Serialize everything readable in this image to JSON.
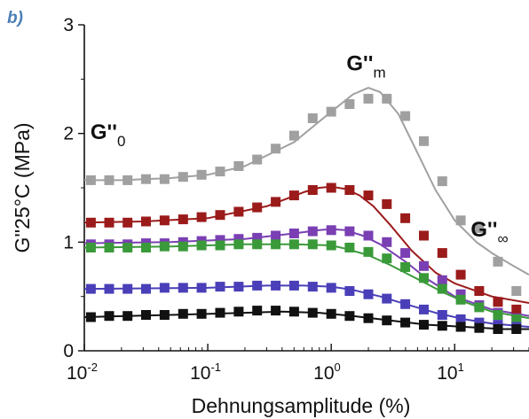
{
  "panel_label": "b)",
  "chart_data": {
    "type": "scatter",
    "title": "",
    "xlabel": "Dehnungsamplitude (%)",
    "ylabel": "G''25°C (MPa)",
    "x_scale": "log",
    "xlim": [
      0.01,
      40
    ],
    "ylim": [
      0,
      3
    ],
    "x_ticks": [
      {
        "value": 0.01,
        "base": "10",
        "exp": "-2"
      },
      {
        "value": 0.1,
        "base": "10",
        "exp": "-1"
      },
      {
        "value": 1,
        "base": "10",
        "exp": "0"
      },
      {
        "value": 10,
        "base": "10",
        "exp": "1"
      }
    ],
    "y_ticks": [
      {
        "value": 0,
        "label": "0"
      },
      {
        "value": 1,
        "label": "1"
      },
      {
        "value": 2,
        "label": "2"
      },
      {
        "value": 3,
        "label": "3"
      }
    ],
    "annotations": [
      {
        "text": "G''",
        "sub": "0",
        "x": 0.0112,
        "y": 1.95
      },
      {
        "text": "G''",
        "sub": "m",
        "x": 1.33,
        "y": 2.58
      },
      {
        "text": "G''",
        "sub": "∞",
        "x": 13.5,
        "y": 1.05
      }
    ],
    "series": [
      {
        "color": "#a0a0a0",
        "x": [
          0.0113,
          0.0159,
          0.0224,
          0.0316,
          0.0447,
          0.0631,
          0.0891,
          0.126,
          0.178,
          0.251,
          0.355,
          0.501,
          0.708,
          1.0,
          1.41,
          2.0,
          2.82,
          3.98,
          5.62,
          7.94,
          11.2,
          15.8,
          22.4,
          31.6
        ],
        "y": [
          1.57,
          1.57,
          1.57,
          1.58,
          1.58,
          1.6,
          1.62,
          1.65,
          1.7,
          1.76,
          1.86,
          1.98,
          2.14,
          2.2,
          2.27,
          2.32,
          2.32,
          2.16,
          1.93,
          1.56,
          1.2,
          1.13,
          0.82,
          0.55
        ],
        "fit_x": [
          0.01,
          0.02,
          0.05,
          0.1,
          0.2,
          0.5,
          1.0,
          1.5,
          2.0,
          2.5,
          3.5,
          5.0,
          7.0,
          10.0,
          15.0,
          20.0,
          30.0,
          40.0
        ],
        "fit_y": [
          1.57,
          1.57,
          1.59,
          1.62,
          1.7,
          1.92,
          2.2,
          2.36,
          2.42,
          2.38,
          2.18,
          1.82,
          1.48,
          1.2,
          1.0,
          0.9,
          0.78,
          0.7
        ]
      },
      {
        "color": "#9b1b1b",
        "x": [
          0.0113,
          0.0159,
          0.0224,
          0.0316,
          0.0447,
          0.0631,
          0.0891,
          0.126,
          0.178,
          0.251,
          0.355,
          0.501,
          0.708,
          1.0,
          1.41,
          2.0,
          2.82,
          3.98,
          5.62,
          7.94,
          11.2,
          15.8,
          22.4,
          31.6
        ],
        "y": [
          1.18,
          1.18,
          1.18,
          1.19,
          1.2,
          1.21,
          1.23,
          1.25,
          1.28,
          1.32,
          1.37,
          1.43,
          1.48,
          1.5,
          1.48,
          1.43,
          1.35,
          1.22,
          1.06,
          0.9,
          0.7,
          0.55,
          0.45,
          0.38
        ],
        "fit_x": [
          0.01,
          0.03,
          0.1,
          0.3,
          0.6,
          0.8,
          1.0,
          1.3,
          1.7,
          2.2,
          3.0,
          4.5,
          7.0,
          10.0,
          20.0,
          40.0
        ],
        "fit_y": [
          1.18,
          1.19,
          1.22,
          1.33,
          1.46,
          1.5,
          1.51,
          1.49,
          1.43,
          1.33,
          1.16,
          0.92,
          0.72,
          0.62,
          0.5,
          0.44
        ]
      },
      {
        "color": "#7a3fb3",
        "x": [
          0.0113,
          0.0159,
          0.0224,
          0.0316,
          0.0447,
          0.0631,
          0.0891,
          0.126,
          0.178,
          0.251,
          0.355,
          0.501,
          0.708,
          1.0,
          1.41,
          2.0,
          2.82,
          3.98,
          5.62,
          7.94,
          11.2,
          15.8,
          22.4,
          31.6
        ],
        "y": [
          0.98,
          0.98,
          0.98,
          0.99,
          0.99,
          1.0,
          1.01,
          1.02,
          1.03,
          1.04,
          1.06,
          1.08,
          1.1,
          1.11,
          1.1,
          1.06,
          1.0,
          0.9,
          0.78,
          0.65,
          0.52,
          0.42,
          0.35,
          0.3
        ],
        "fit_x": [
          0.01,
          0.05,
          0.2,
          0.5,
          0.8,
          1.0,
          1.3,
          1.8,
          2.5,
          4.0,
          6.0,
          10.0,
          20.0,
          40.0
        ],
        "fit_y": [
          0.99,
          1.0,
          1.03,
          1.08,
          1.11,
          1.12,
          1.11,
          1.06,
          0.98,
          0.82,
          0.66,
          0.5,
          0.38,
          0.32
        ]
      },
      {
        "color": "#3a9a3a",
        "x": [
          0.0113,
          0.0159,
          0.0224,
          0.0316,
          0.0447,
          0.0631,
          0.0891,
          0.126,
          0.178,
          0.251,
          0.355,
          0.501,
          0.708,
          1.0,
          1.41,
          2.0,
          2.82,
          3.98,
          5.62,
          7.94,
          11.2,
          15.8,
          22.4,
          31.6
        ],
        "y": [
          0.95,
          0.95,
          0.95,
          0.95,
          0.96,
          0.96,
          0.97,
          0.97,
          0.98,
          0.98,
          0.98,
          0.98,
          0.98,
          0.97,
          0.95,
          0.91,
          0.85,
          0.77,
          0.67,
          0.57,
          0.47,
          0.4,
          0.33,
          0.29
        ],
        "fit_x": [
          0.01,
          0.05,
          0.2,
          0.5,
          1.0,
          1.3,
          2.0,
          3.0,
          5.0,
          8.0,
          12.0,
          20.0,
          40.0
        ],
        "fit_y": [
          0.95,
          0.96,
          0.98,
          0.98,
          0.97,
          0.94,
          0.88,
          0.79,
          0.66,
          0.54,
          0.45,
          0.36,
          0.3
        ]
      },
      {
        "color": "#4a3fb8",
        "x": [
          0.0113,
          0.0159,
          0.0224,
          0.0316,
          0.0447,
          0.0631,
          0.0891,
          0.126,
          0.178,
          0.251,
          0.355,
          0.501,
          0.708,
          1.0,
          1.41,
          2.0,
          2.82,
          3.98,
          5.62,
          7.94,
          11.2,
          15.8,
          22.4,
          31.6
        ],
        "y": [
          0.57,
          0.57,
          0.57,
          0.57,
          0.58,
          0.58,
          0.58,
          0.59,
          0.59,
          0.6,
          0.6,
          0.6,
          0.59,
          0.58,
          0.55,
          0.52,
          0.48,
          0.43,
          0.38,
          0.33,
          0.29,
          0.26,
          0.24,
          0.22
        ],
        "fit_x": [
          0.01,
          0.1,
          0.3,
          0.6,
          1.0,
          1.5,
          2.5,
          4.0,
          7.0,
          12.0,
          20.0,
          40.0
        ],
        "fit_y": [
          0.57,
          0.58,
          0.6,
          0.6,
          0.59,
          0.56,
          0.5,
          0.43,
          0.35,
          0.29,
          0.25,
          0.22
        ]
      },
      {
        "color": "#111111",
        "x": [
          0.0113,
          0.0159,
          0.0224,
          0.0316,
          0.0447,
          0.0631,
          0.0891,
          0.126,
          0.178,
          0.251,
          0.355,
          0.501,
          0.708,
          1.0,
          1.41,
          2.0,
          2.82,
          3.98,
          5.62,
          7.94,
          11.2,
          15.8,
          22.4,
          31.6
        ],
        "y": [
          0.31,
          0.32,
          0.32,
          0.33,
          0.33,
          0.34,
          0.34,
          0.35,
          0.36,
          0.37,
          0.37,
          0.36,
          0.35,
          0.34,
          0.32,
          0.3,
          0.28,
          0.26,
          0.24,
          0.23,
          0.22,
          0.21,
          0.2,
          0.2
        ],
        "fit_x": [
          0.01,
          0.05,
          0.2,
          0.4,
          0.8,
          1.5,
          3.0,
          6.0,
          12.0,
          25.0,
          40.0
        ],
        "fit_y": [
          0.31,
          0.33,
          0.35,
          0.36,
          0.35,
          0.32,
          0.28,
          0.24,
          0.22,
          0.2,
          0.2
        ]
      }
    ]
  }
}
